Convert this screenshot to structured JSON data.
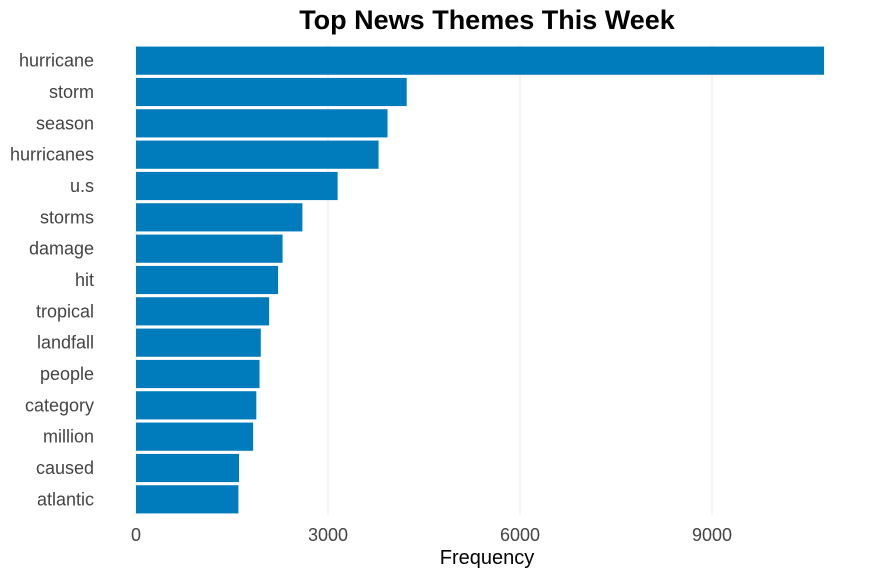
{
  "chart_data": {
    "type": "bar",
    "orientation": "horizontal",
    "title": "Top News Themes This Week",
    "xlabel": "Frequency",
    "ylabel": "",
    "categories": [
      "hurricane",
      "storm",
      "season",
      "hurricanes",
      "u.s",
      "storms",
      "damage",
      "hit",
      "tropical",
      "landfall",
      "people",
      "category",
      "million",
      "caused",
      "atlantic"
    ],
    "values": [
      10750,
      4230,
      3930,
      3790,
      3150,
      2600,
      2290,
      2220,
      2080,
      1950,
      1930,
      1880,
      1830,
      1610,
      1600
    ],
    "xlim": [
      0,
      11000
    ],
    "xticks": [
      0,
      3000,
      6000,
      9000
    ],
    "grid": "vertical",
    "legend": "none",
    "bar_color": "#007bbb"
  }
}
